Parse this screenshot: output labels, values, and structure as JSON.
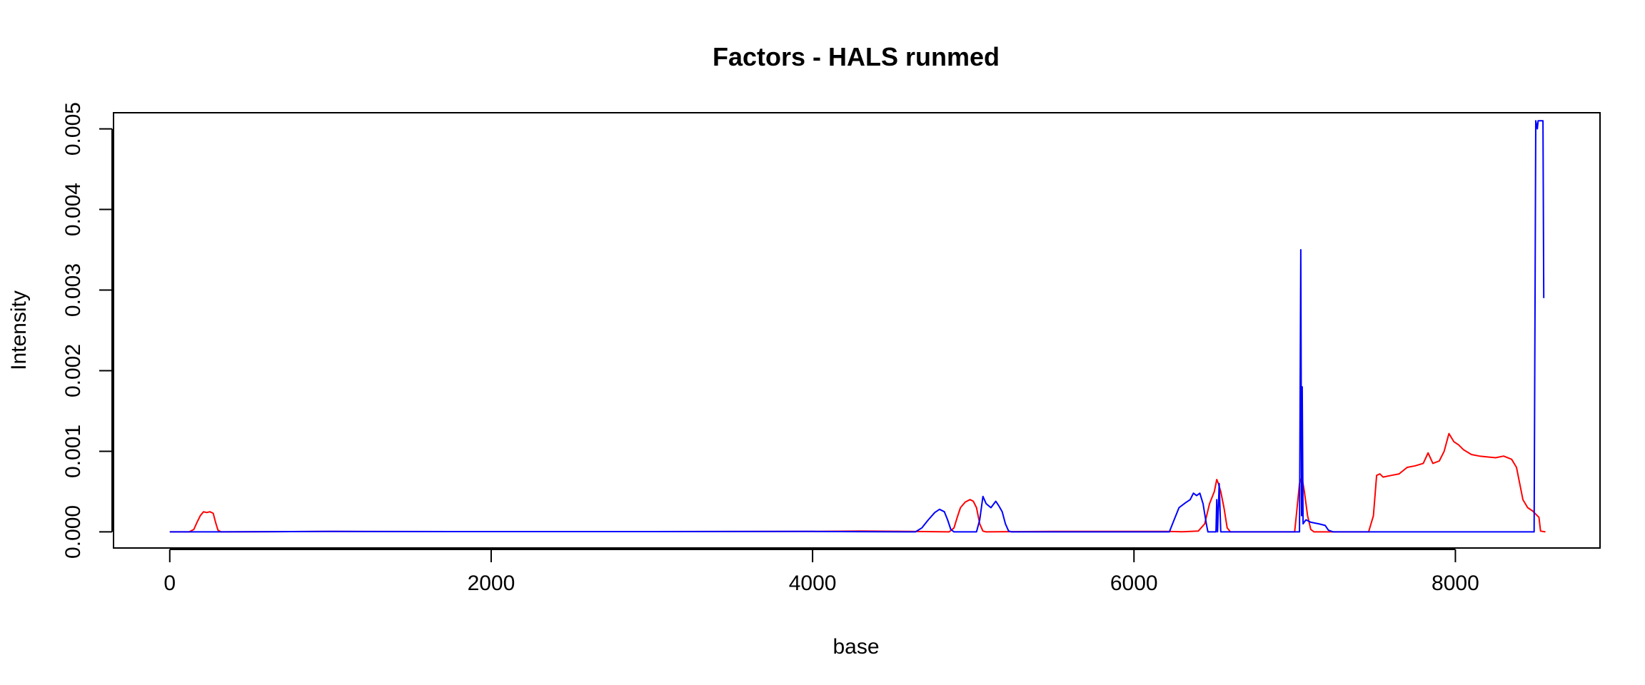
{
  "chart_data": {
    "type": "line",
    "title": "Factors - HALS runmed",
    "xlabel": "base",
    "ylabel": "Intensity",
    "xlim": [
      -350,
      8900
    ],
    "ylim": [
      -0.0002,
      0.0052
    ],
    "xticks": [
      0,
      2000,
      4000,
      6000,
      8000
    ],
    "xtick_labels": [
      "0",
      "2000",
      "4000",
      "6000",
      "8000"
    ],
    "yticks": [
      0.0,
      0.001,
      0.002,
      0.003,
      0.004,
      0.005
    ],
    "ytick_labels": [
      "0.000",
      "0.001",
      "0.002",
      "0.003",
      "0.004",
      "0.005"
    ],
    "grid": false,
    "series": [
      {
        "color": "#ff0000",
        "points": [
          [
            0,
            0
          ],
          [
            120,
            0
          ],
          [
            150,
            3e-05
          ],
          [
            170,
            0.00012
          ],
          [
            190,
            0.0002
          ],
          [
            210,
            0.00025
          ],
          [
            230,
            0.00024
          ],
          [
            250,
            0.00025
          ],
          [
            270,
            0.00023
          ],
          [
            285,
            0.00012
          ],
          [
            300,
            2e-05
          ],
          [
            320,
            0
          ],
          [
            1000,
            5e-06
          ],
          [
            2000,
            4e-06
          ],
          [
            3000,
            4e-06
          ],
          [
            4000,
            5e-06
          ],
          [
            4300,
            1e-05
          ],
          [
            4600,
            5e-06
          ],
          [
            4850,
            0
          ],
          [
            4880,
            5e-05
          ],
          [
            4900,
            0.00018
          ],
          [
            4920,
            0.0003
          ],
          [
            4950,
            0.00037
          ],
          [
            4980,
            0.0004
          ],
          [
            5000,
            0.00038
          ],
          [
            5020,
            0.0003
          ],
          [
            5040,
            0.0001
          ],
          [
            5060,
            1e-05
          ],
          [
            5080,
            0
          ],
          [
            5500,
            5e-06
          ],
          [
            5800,
            5e-06
          ],
          [
            6200,
            5e-06
          ],
          [
            6300,
            2e-06
          ],
          [
            6400,
            1e-05
          ],
          [
            6440,
            0.0001
          ],
          [
            6470,
            0.00035
          ],
          [
            6500,
            0.0005
          ],
          [
            6515,
            0.00065
          ],
          [
            6525,
            0.0006
          ],
          [
            6540,
            0.0005
          ],
          [
            6560,
            0.0003
          ],
          [
            6580,
            5e-05
          ],
          [
            6600,
            0
          ],
          [
            7000,
            0
          ],
          [
            7010,
            0.0002
          ],
          [
            7030,
            0.0006
          ],
          [
            7045,
            0.00068
          ],
          [
            7060,
            0.0005
          ],
          [
            7080,
            0.0002
          ],
          [
            7100,
            3e-05
          ],
          [
            7120,
            0
          ],
          [
            7460,
            0
          ],
          [
            7490,
            0.0002
          ],
          [
            7510,
            0.0007
          ],
          [
            7530,
            0.00072
          ],
          [
            7550,
            0.00068
          ],
          [
            7600,
            0.0007
          ],
          [
            7650,
            0.00072
          ],
          [
            7700,
            0.0008
          ],
          [
            7750,
            0.00082
          ],
          [
            7800,
            0.00085
          ],
          [
            7830,
            0.00098
          ],
          [
            7860,
            0.00085
          ],
          [
            7900,
            0.00088
          ],
          [
            7930,
            0.001
          ],
          [
            7960,
            0.00122
          ],
          [
            7990,
            0.00112
          ],
          [
            8020,
            0.00108
          ],
          [
            8050,
            0.00102
          ],
          [
            8100,
            0.00096
          ],
          [
            8150,
            0.00094
          ],
          [
            8200,
            0.00093
          ],
          [
            8250,
            0.00092
          ],
          [
            8300,
            0.00094
          ],
          [
            8350,
            0.0009
          ],
          [
            8380,
            0.0008
          ],
          [
            8400,
            0.0006
          ],
          [
            8420,
            0.0004
          ],
          [
            8450,
            0.0003
          ],
          [
            8480,
            0.00026
          ],
          [
            8500,
            0.00022
          ],
          [
            8520,
            0.00018
          ],
          [
            8530,
            1e-05
          ],
          [
            8560,
            0
          ]
        ]
      },
      {
        "color": "#0000ff",
        "points": [
          [
            0,
            0
          ],
          [
            300,
            0
          ],
          [
            1000,
            5e-06
          ],
          [
            2000,
            4e-06
          ],
          [
            3000,
            4e-06
          ],
          [
            4000,
            5e-06
          ],
          [
            4640,
            0
          ],
          [
            4680,
            5e-05
          ],
          [
            4720,
            0.00015
          ],
          [
            4760,
            0.00024
          ],
          [
            4790,
            0.00028
          ],
          [
            4820,
            0.00025
          ],
          [
            4840,
            0.00015
          ],
          [
            4860,
            3e-05
          ],
          [
            4880,
            0
          ],
          [
            5020,
            0
          ],
          [
            5040,
            0.00015
          ],
          [
            5060,
            0.00044
          ],
          [
            5080,
            0.00035
          ],
          [
            5110,
            0.0003
          ],
          [
            5140,
            0.00038
          ],
          [
            5160,
            0.00032
          ],
          [
            5180,
            0.00025
          ],
          [
            5200,
            0.0001
          ],
          [
            5220,
            1e-05
          ],
          [
            5240,
            0
          ],
          [
            6220,
            0
          ],
          [
            6250,
            0.00015
          ],
          [
            6280,
            0.0003
          ],
          [
            6320,
            0.00036
          ],
          [
            6350,
            0.0004
          ],
          [
            6370,
            0.00048
          ],
          [
            6390,
            0.00045
          ],
          [
            6410,
            0.00048
          ],
          [
            6430,
            0.00035
          ],
          [
            6450,
            0.0001
          ],
          [
            6460,
            0
          ],
          [
            6510,
            0
          ],
          [
            6515,
            0.0004
          ],
          [
            6520,
            0
          ],
          [
            6530,
            0.0006
          ],
          [
            6540,
            0
          ],
          [
            7030,
            0
          ],
          [
            7038,
            0.0035
          ],
          [
            7043,
            0.0002
          ],
          [
            7047,
            0.0018
          ],
          [
            7052,
            0.0001
          ],
          [
            7070,
            0.00015
          ],
          [
            7100,
            0.00012
          ],
          [
            7150,
            0.0001
          ],
          [
            7190,
            8e-05
          ],
          [
            7210,
            2e-05
          ],
          [
            7240,
            0
          ],
          [
            8490,
            0
          ],
          [
            8500,
            0.0051
          ],
          [
            8510,
            0.005
          ],
          [
            8515,
            0.0051
          ],
          [
            8545,
            0.0051
          ],
          [
            8550,
            0.0029
          ]
        ]
      }
    ]
  }
}
